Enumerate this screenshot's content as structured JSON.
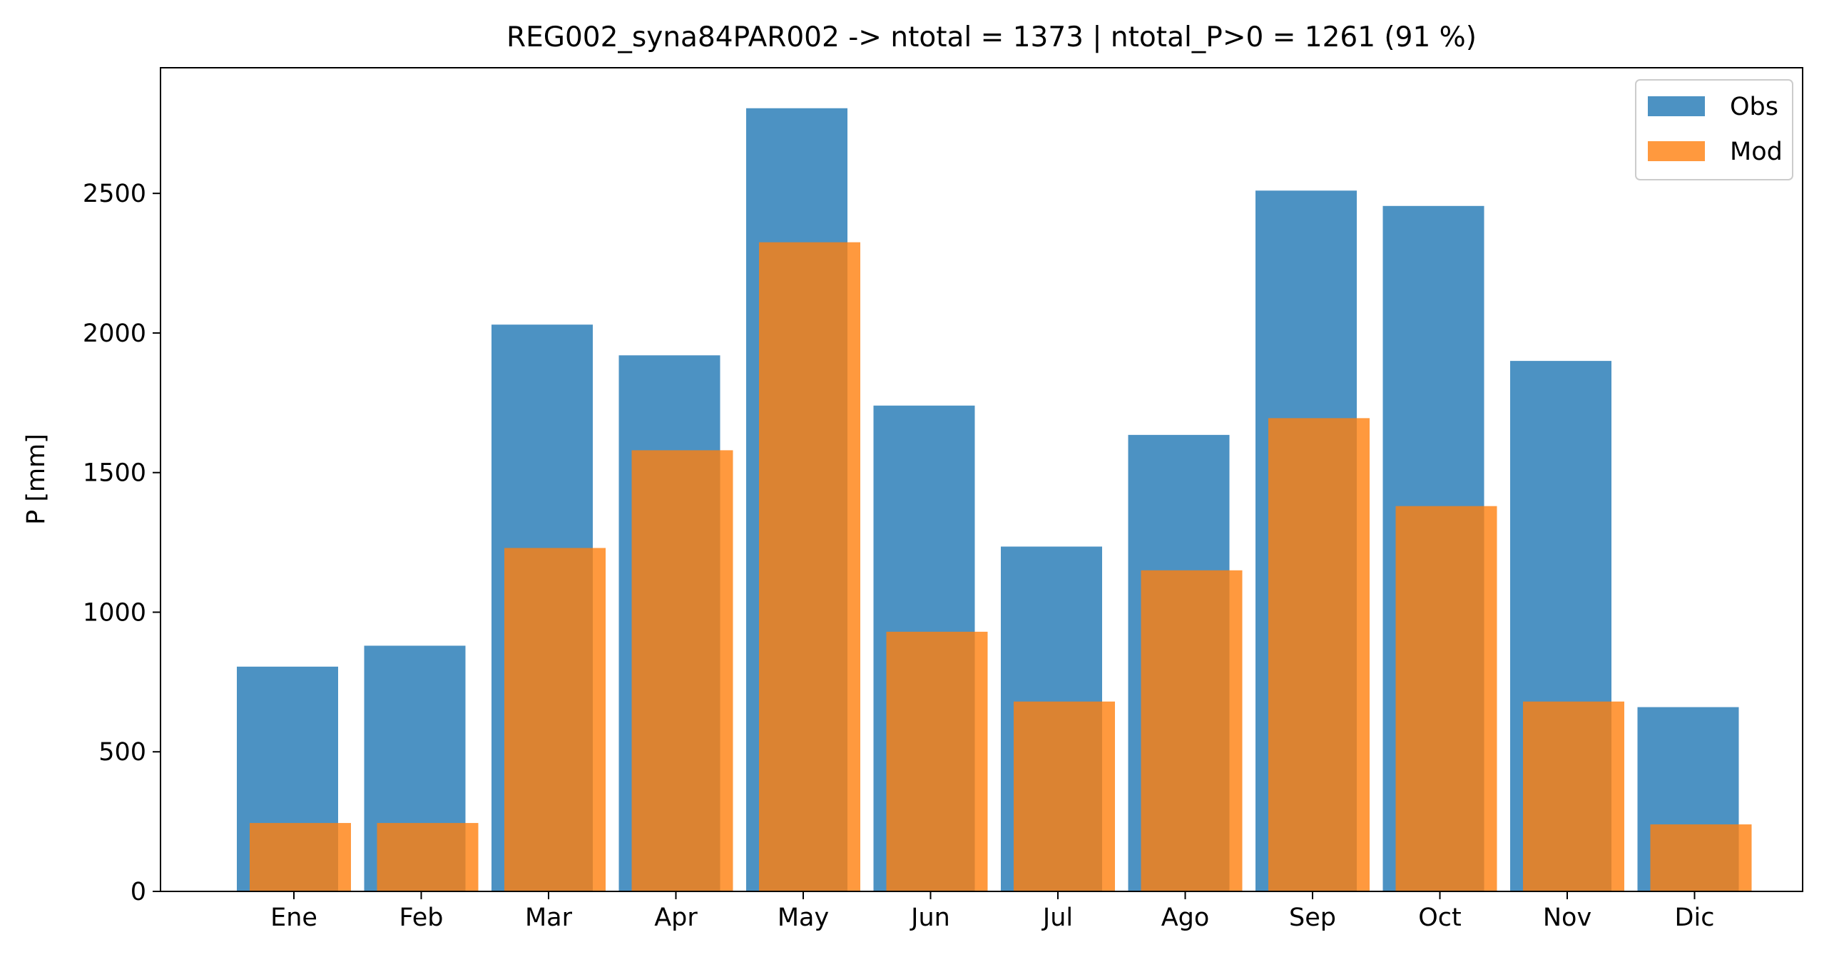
{
  "chart_data": {
    "type": "bar",
    "title": "REG002_syna84PAR002 -> ntotal = 1373 | ntotal_P>0 = 1261 (91 %)",
    "xlabel": "",
    "ylabel": "P [mm]",
    "categories": [
      "Ene",
      "Feb",
      "Mar",
      "Apr",
      "May",
      "Jun",
      "Jul",
      "Ago",
      "Sep",
      "Oct",
      "Nov",
      "Dic"
    ],
    "series": [
      {
        "name": "Obs",
        "color": "#1f77b4",
        "opacity": 0.8,
        "values": [
          805,
          880,
          2030,
          1920,
          2805,
          1740,
          1235,
          1635,
          2510,
          2455,
          1900,
          660
        ]
      },
      {
        "name": "Mod",
        "color": "#ff7f0e",
        "opacity": 0.8,
        "values": [
          245,
          245,
          1230,
          1580,
          2325,
          930,
          680,
          1150,
          1695,
          1380,
          680,
          240
        ]
      }
    ],
    "ylim": [
      0,
      2950
    ],
    "yticks": [
      0,
      500,
      1000,
      1500,
      2000,
      2500
    ],
    "grid": false,
    "legend": "upper right"
  }
}
